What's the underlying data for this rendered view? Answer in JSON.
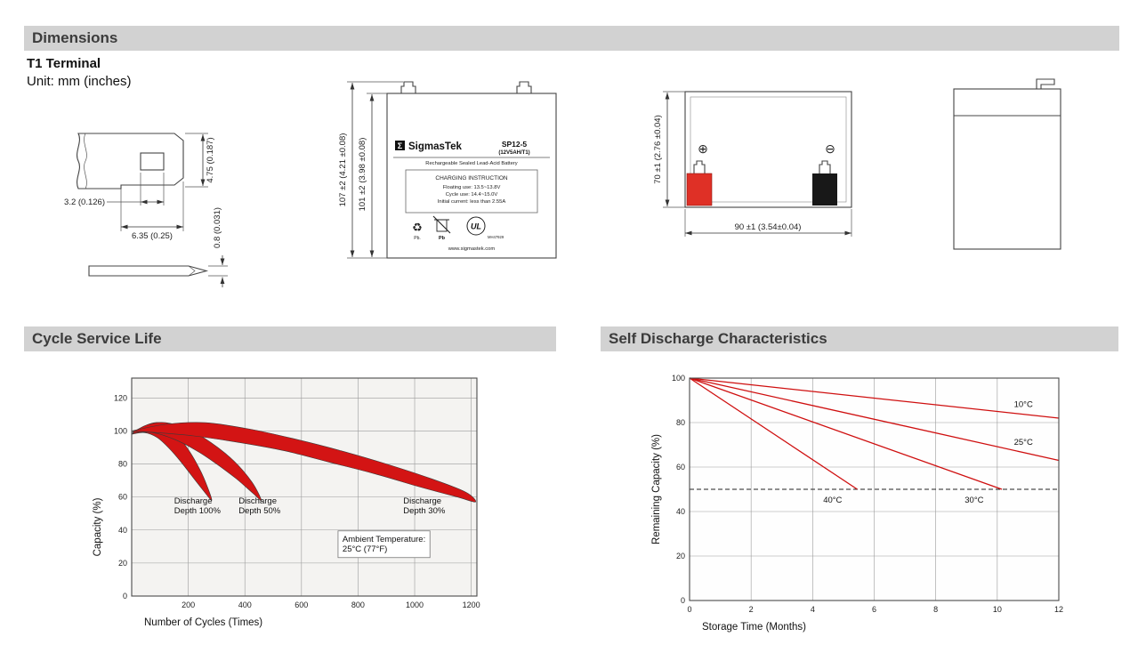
{
  "sections": {
    "dimensions": {
      "title": "Dimensions",
      "terminal": "T1 Terminal",
      "unit": "Unit: mm (inches)"
    },
    "cycle_life": {
      "title": "Cycle Service Life"
    },
    "self_discharge": {
      "title": "Self Discharge Characteristics"
    }
  },
  "terminal_detail": {
    "dims": {
      "height": "4.75 (0.187)",
      "hole": "3.2 (0.126)",
      "width": "6.35 (0.25)",
      "thickness": "0.8 (0.031)"
    }
  },
  "front_view": {
    "dims": {
      "overall_height": "107 ±2 (4.21 ±0.08)",
      "case_height": "101 ±2 (3.98 ±0.08)"
    },
    "label": {
      "logo_sigma": "Σ",
      "brand": "SigmasTek",
      "model": "SP12-5",
      "rating": "(12V5AH/T1)",
      "battery_type": "Rechargeable Sealed Lead-Acid Battery",
      "charging_title": "CHARGING INSTRUCTION",
      "charge_line1": "Floating use: 13.5~13.8V",
      "charge_line2": "Cycle use: 14.4~15.0V",
      "charge_line3": "Initial current: less than 2.55A",
      "recycle_icon": "♻",
      "pb_recycle": "Pb.",
      "pb_trash": "Pb",
      "ul_mark": "UL",
      "ul_code": "MH47929",
      "website": "www.sigmastek.com"
    }
  },
  "rear_view": {
    "dims": {
      "height": "70 ±1 (2.76 ±0.04)",
      "width": "90 ±1 (3.54±0.04)"
    },
    "icons": {
      "positive_terminal": "⊕",
      "negative_terminal": "⊖"
    }
  },
  "chart_data": [
    {
      "type": "area",
      "title": "Cycle Service Life",
      "xlabel": "Number of Cycles (Times)",
      "ylabel": "Capacity (%)",
      "xlim": [
        0,
        1220
      ],
      "ylim": [
        0,
        132
      ],
      "xticks": [
        200,
        400,
        600,
        800,
        1000,
        1200
      ],
      "yticks": [
        0,
        20,
        40,
        60,
        80,
        100,
        120
      ],
      "grid": true,
      "plot_bg": "#f4f3f1",
      "fill_color": "#d31414",
      "bands": [
        {
          "name": "Discharge Depth 100%",
          "points": [
            [
              0,
              98
            ],
            [
              45,
              103
            ],
            [
              95,
              105
            ],
            [
              145,
              100
            ],
            [
              195,
              90
            ],
            [
              240,
              77
            ],
            [
              268,
              66
            ],
            [
              283,
              58
            ],
            [
              262,
              62
            ],
            [
              225,
              70
            ],
            [
              180,
              80
            ],
            [
              135,
              89
            ],
            [
              90,
              96
            ],
            [
              45,
              99
            ],
            [
              0,
              98
            ]
          ]
        },
        {
          "name": "Discharge Depth 50%",
          "points": [
            [
              0,
              99
            ],
            [
              60,
              104
            ],
            [
              120,
              105
            ],
            [
              200,
              101
            ],
            [
              280,
              93
            ],
            [
              360,
              82
            ],
            [
              425,
              69
            ],
            [
              458,
              58
            ],
            [
              430,
              62
            ],
            [
              370,
              71
            ],
            [
              300,
              80
            ],
            [
              230,
              88
            ],
            [
              150,
              95
            ],
            [
              75,
              99
            ],
            [
              0,
              99
            ]
          ]
        },
        {
          "name": "Discharge Depth 30%",
          "points": [
            [
              0,
              100
            ],
            [
              120,
              104
            ],
            [
              260,
              105
            ],
            [
              420,
              101
            ],
            [
              580,
              95
            ],
            [
              740,
              88
            ],
            [
              900,
              80
            ],
            [
              1060,
              71
            ],
            [
              1180,
              63
            ],
            [
              1215,
              57
            ],
            [
              1150,
              60
            ],
            [
              1020,
              66
            ],
            [
              860,
              74
            ],
            [
              700,
              81
            ],
            [
              540,
              88
            ],
            [
              380,
              93
            ],
            [
              220,
              97
            ],
            [
              90,
              99
            ],
            [
              0,
              100
            ]
          ]
        }
      ],
      "annotations": [
        {
          "lines": [
            "Discharge",
            "Depth 100%"
          ],
          "x": 150,
          "y": 56
        },
        {
          "lines": [
            "Discharge",
            "Depth 50%"
          ],
          "x": 378,
          "y": 56
        },
        {
          "lines": [
            "Discharge",
            "Depth 30%"
          ],
          "x": 960,
          "y": 56
        },
        {
          "lines": [
            "Ambient Temperature:",
            "25°C (77°F)"
          ],
          "x": 745,
          "y": 33,
          "box": true
        }
      ]
    },
    {
      "type": "line",
      "title": "Self Discharge Characteristics",
      "xlabel": "Storage Time (Months)",
      "ylabel": "Remaining Capacity (%)",
      "xlim": [
        0,
        12
      ],
      "ylim": [
        0,
        100
      ],
      "xticks": [
        0,
        2,
        4,
        6,
        8,
        10,
        12
      ],
      "yticks": [
        0,
        20,
        40,
        60,
        80,
        100
      ],
      "grid": true,
      "plot_bg": "#fefefe",
      "line_color": "#cf0f0f",
      "series": [
        {
          "name": "10°C",
          "points": [
            [
              0,
              100
            ],
            [
              12,
              82
            ]
          ],
          "label_at": [
            10.85,
            87
          ]
        },
        {
          "name": "25°C",
          "points": [
            [
              0,
              100
            ],
            [
              12,
              63
            ]
          ],
          "label_at": [
            10.85,
            70
          ]
        },
        {
          "name": "30°C",
          "points": [
            [
              0,
              100
            ],
            [
              10.15,
              50
            ]
          ],
          "label_at": [
            9.25,
            44
          ]
        },
        {
          "name": "40°C",
          "points": [
            [
              0,
              100
            ],
            [
              5.45,
              50
            ]
          ],
          "label_at": [
            4.65,
            44
          ]
        }
      ],
      "ref_line": {
        "y": 50
      }
    }
  ]
}
